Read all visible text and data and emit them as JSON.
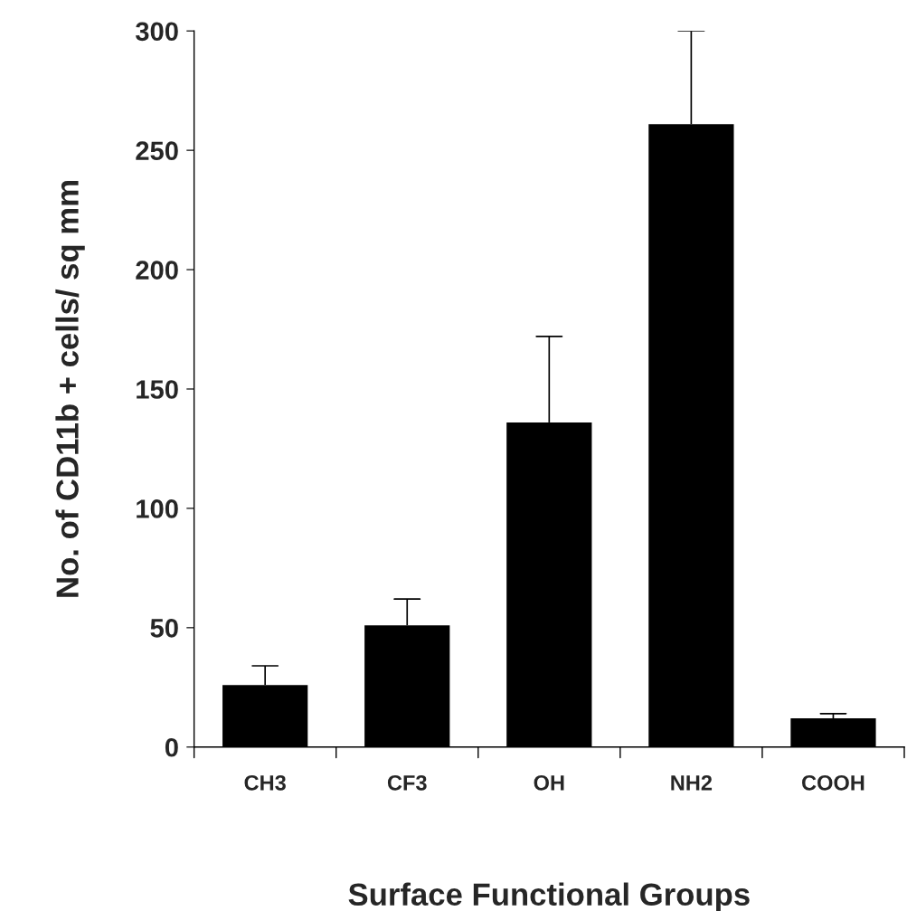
{
  "chart_data": {
    "type": "bar",
    "xlabel": "Surface Functional Groups",
    "ylabel": "No. of CD11b + cells/ sq mm",
    "categories": [
      "CH3",
      "CF3",
      "OH",
      "NH2",
      "COOH"
    ],
    "values": [
      26,
      51,
      136,
      261,
      12
    ],
    "errors": [
      [
        26,
        34
      ],
      [
        51,
        62
      ],
      [
        136,
        172
      ],
      [
        261,
        300
      ],
      [
        12,
        14
      ]
    ],
    "color": "#000000",
    "ylim": [
      0,
      300
    ],
    "yticks": [
      0,
      50,
      100,
      150,
      200,
      250,
      300
    ],
    "grid": false,
    "legend": false
  }
}
